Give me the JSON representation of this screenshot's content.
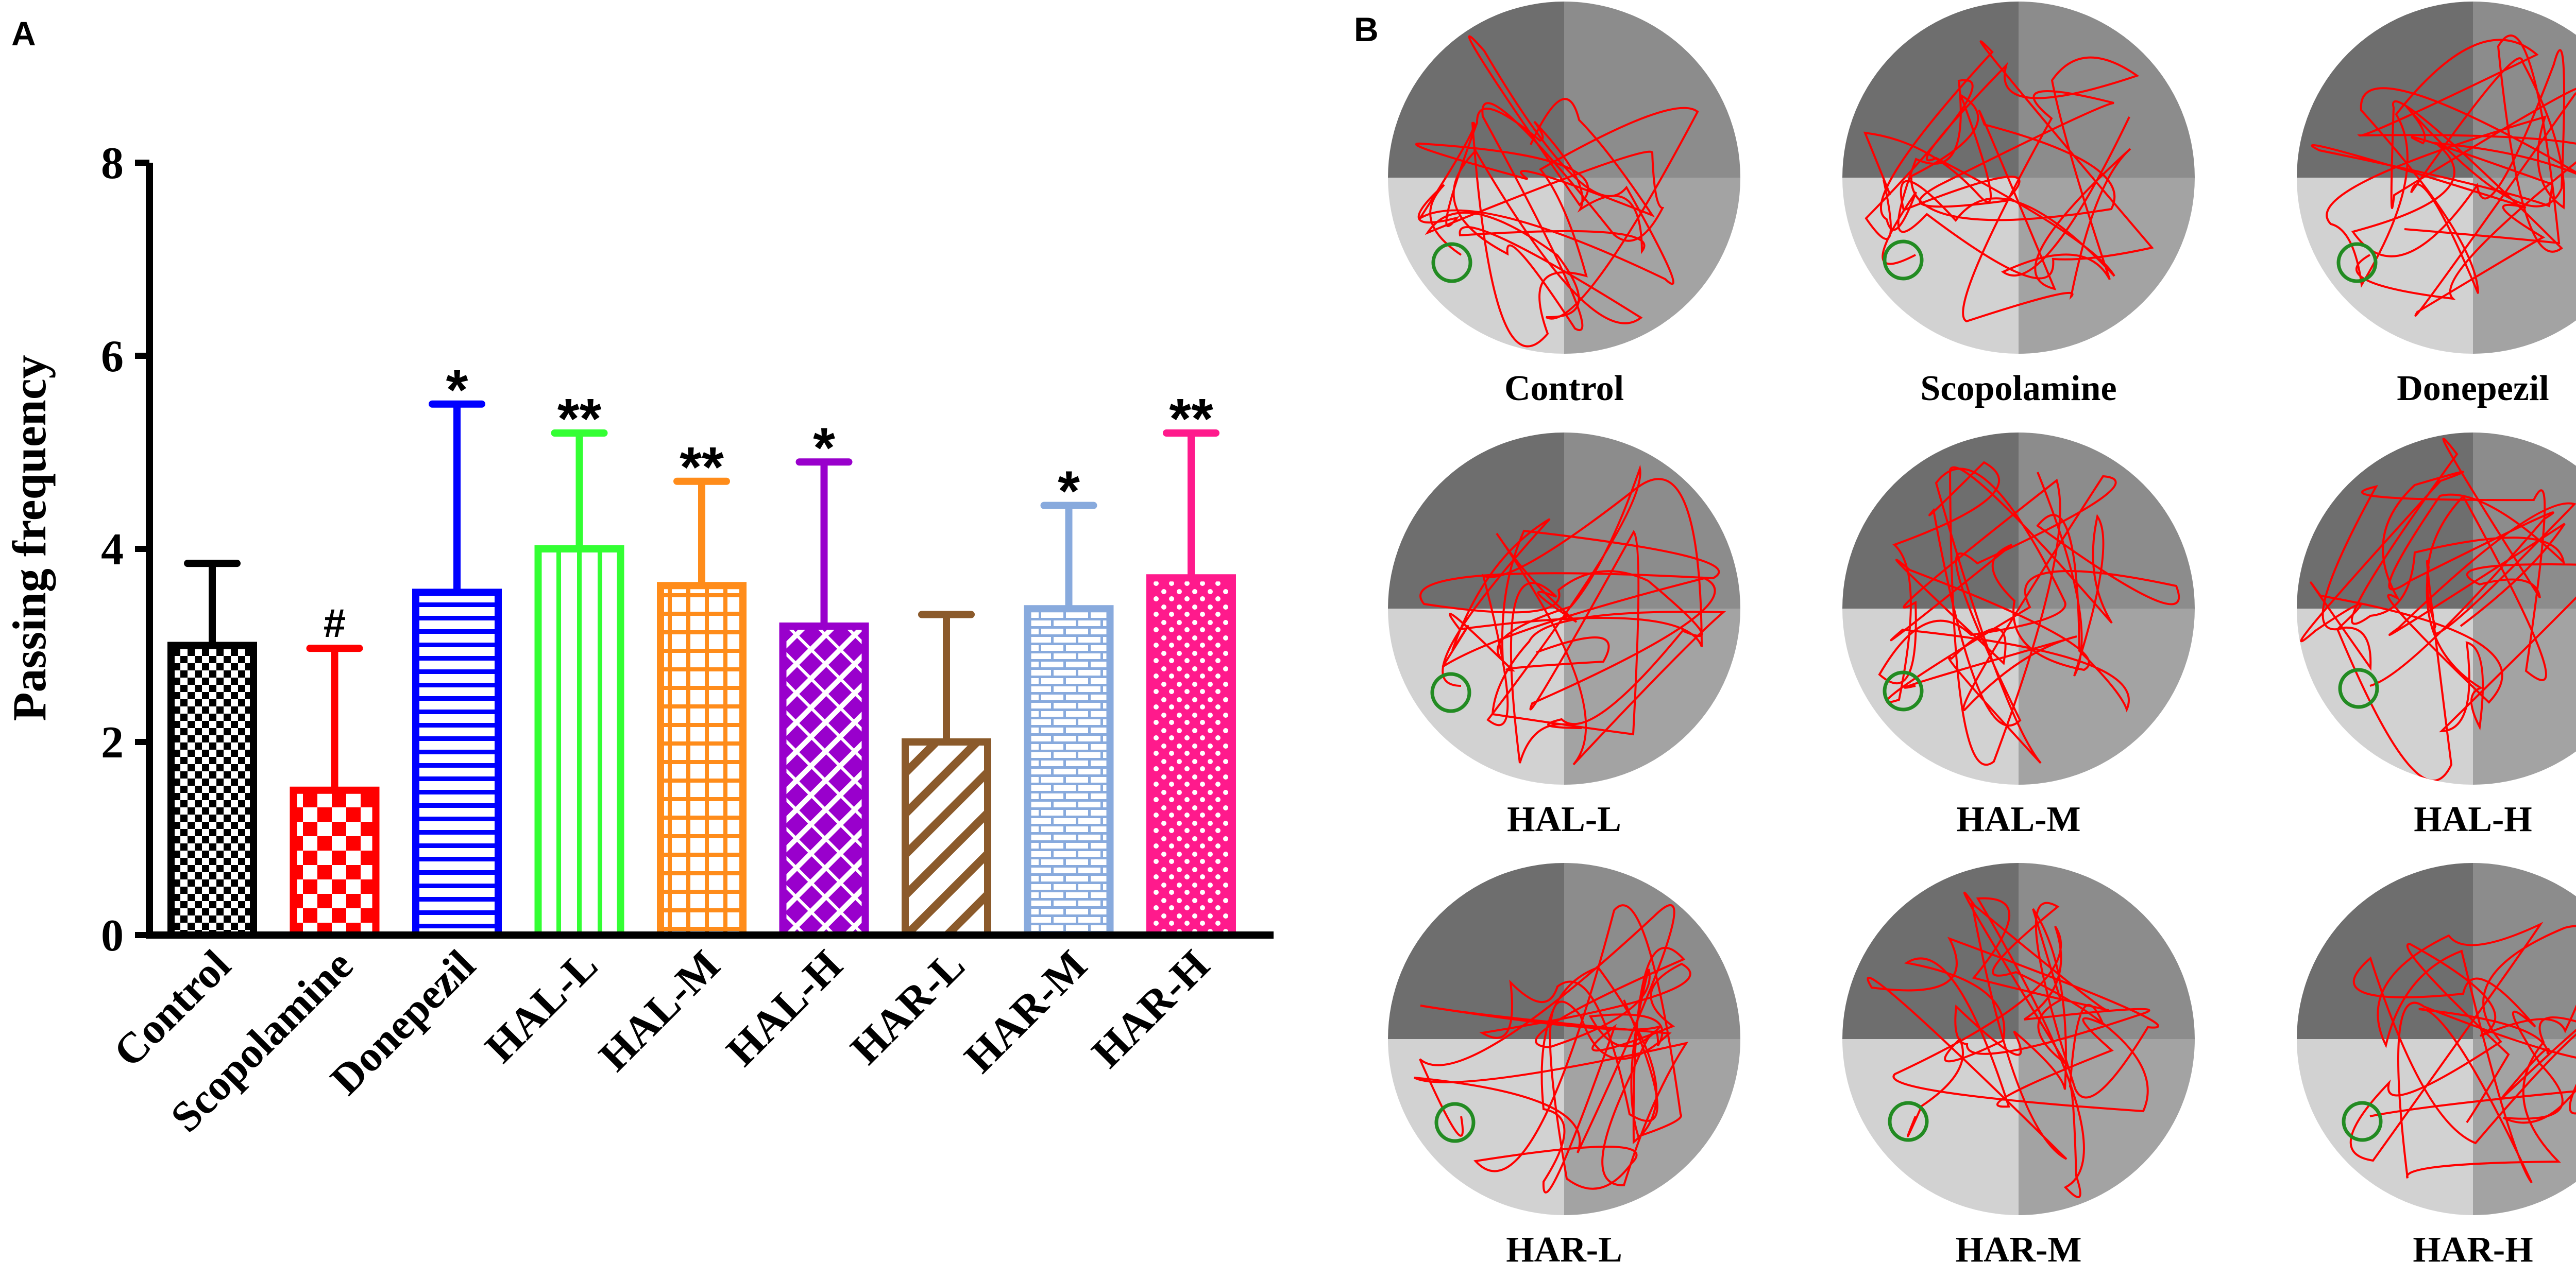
{
  "panels": {
    "a_label": "A",
    "b_label": "B"
  },
  "chart_data": {
    "type": "bar",
    "title": "",
    "xlabel": "",
    "ylabel": "Passing frequency",
    "ylim": [
      0,
      8
    ],
    "yticks": [
      0,
      2,
      4,
      6,
      8
    ],
    "categories": [
      "Control",
      "Scopolamine",
      "Donepezil",
      "HAL-L",
      "HAL-M",
      "HAL-H",
      "HAR-L",
      "HAR-M",
      "HAR-H"
    ],
    "values": [
      3.0,
      1.5,
      3.55,
      4.0,
      3.62,
      3.2,
      2.0,
      3.38,
      3.7
    ],
    "error_upper": [
      3.85,
      2.97,
      5.5,
      5.2,
      4.7,
      4.9,
      3.32,
      4.45,
      5.2
    ],
    "significance": [
      "",
      "#",
      "*",
      "**",
      "**",
      "*",
      "",
      "*",
      "**"
    ],
    "colors": [
      "#000000",
      "#FF0000",
      "#0000FF",
      "#33FF33",
      "#FF8C1A",
      "#9900CC",
      "#8B5A2B",
      "#88AADD",
      "#FF1A8C"
    ]
  },
  "maze_panels": [
    {
      "label": "Control"
    },
    {
      "label": "Scopolamine"
    },
    {
      "label": "Donepezil"
    },
    {
      "label": "HAL-L"
    },
    {
      "label": "HAL-M"
    },
    {
      "label": "HAL-H"
    },
    {
      "label": "HAR-L"
    },
    {
      "label": "HAR-M"
    },
    {
      "label": "HAR-H"
    }
  ],
  "maze_colors": {
    "q_dark": "#6E6E6E",
    "q_mid": "#8C8C8C",
    "q_light": "#D2D2D2",
    "q_medium": "#A3A3A3",
    "path": "#FF0000",
    "platform": "#228B22"
  }
}
